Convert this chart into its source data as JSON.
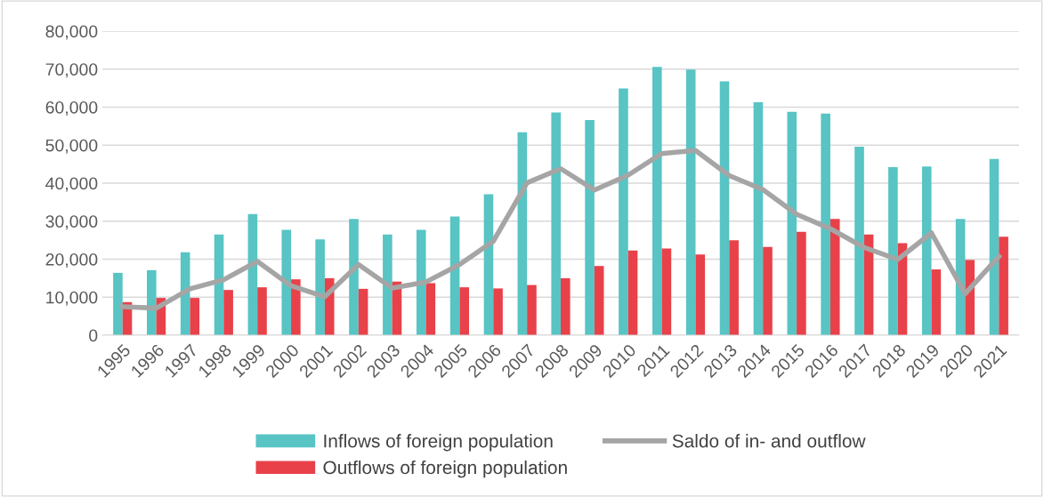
{
  "chart_data": {
    "type": "bar",
    "categories": [
      "1995",
      "1996",
      "1997",
      "1998",
      "1999",
      "2000",
      "2001",
      "2002",
      "2003",
      "2004",
      "2005",
      "2006",
      "2007",
      "2008",
      "2009",
      "2010",
      "2011",
      "2012",
      "2013",
      "2014",
      "2015",
      "2016",
      "2017",
      "2018",
      "2019",
      "2020",
      "2021"
    ],
    "series": [
      {
        "name": "Inflows of foreign population",
        "color": "#58c4c4",
        "values": [
          16400,
          17100,
          21800,
          26500,
          31900,
          27700,
          25200,
          30600,
          26500,
          27700,
          31200,
          37100,
          53400,
          58600,
          56600,
          64900,
          70600,
          69900,
          66800,
          61300,
          58800,
          58300,
          49600,
          44200,
          44400,
          30600,
          46400
        ]
      },
      {
        "name": "Outflows of foreign population",
        "color": "#e8414a",
        "values": [
          8700,
          9800,
          9800,
          11900,
          12600,
          14700,
          15000,
          12200,
          14100,
          13700,
          12600,
          12300,
          13200,
          15000,
          18200,
          22300,
          22800,
          21200,
          25000,
          23200,
          27200,
          30600,
          26500,
          24200,
          17300,
          19800,
          25900
        ]
      },
      {
        "name": "Saldo of in- and outflow",
        "type": "line",
        "color": "#a5a5a5",
        "values": [
          7500,
          7100,
          12200,
          14600,
          19400,
          13000,
          10100,
          18600,
          12400,
          14000,
          18600,
          24700,
          40100,
          43800,
          38200,
          42100,
          47800,
          48600,
          42000,
          38300,
          31800,
          28000,
          23100,
          19900,
          26900,
          10900,
          20700
        ]
      }
    ],
    "ylim": [
      0,
      80000
    ],
    "yticks": [
      {
        "value": 0,
        "label": "0"
      },
      {
        "value": 10000,
        "label": "10,000"
      },
      {
        "value": 20000,
        "label": "20,000"
      },
      {
        "value": 30000,
        "label": "30,000"
      },
      {
        "value": 40000,
        "label": "40,000"
      },
      {
        "value": 50000,
        "label": "50,000"
      },
      {
        "value": 60000,
        "label": "60,000"
      },
      {
        "value": 70000,
        "label": "70,000"
      },
      {
        "value": 80000,
        "label": "80,000"
      }
    ],
    "grid": "y",
    "legend": "bottom"
  }
}
